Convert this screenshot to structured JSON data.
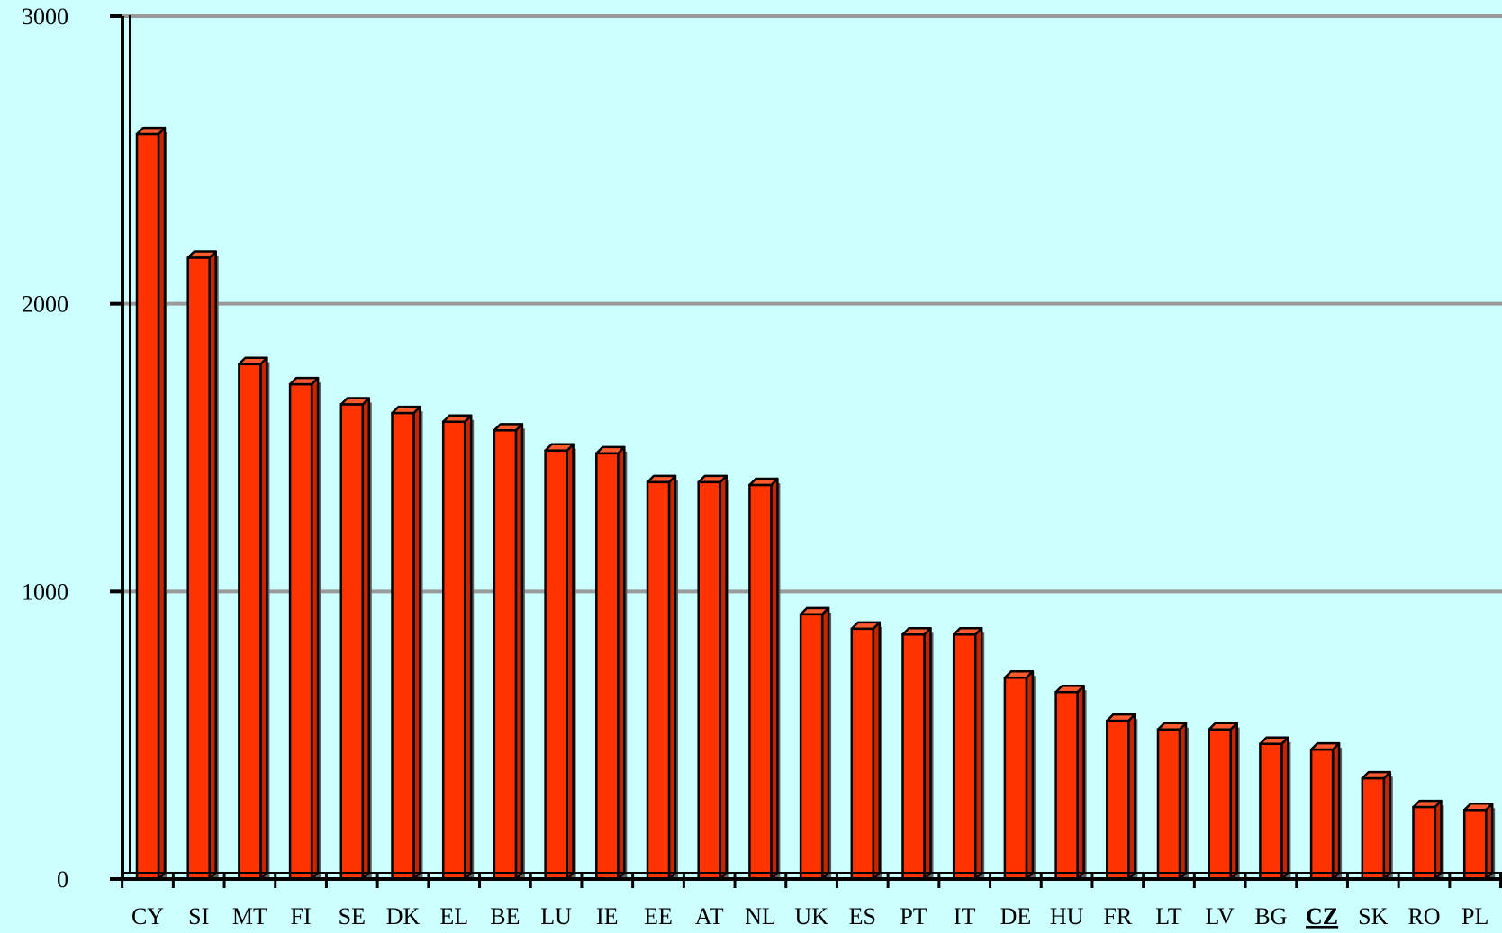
{
  "chart_data": {
    "type": "bar",
    "title": "",
    "xlabel": "",
    "ylabel": "",
    "ylim": [
      0,
      3000
    ],
    "yticks": [
      0,
      1000,
      2000,
      3000
    ],
    "ytick_labels": [
      "0",
      "1000",
      "2000",
      "3000"
    ],
    "grid": true,
    "legend": "none",
    "highlight_category": "CZ",
    "categories": [
      "CY",
      "SI",
      "MT",
      "FI",
      "SE",
      "DK",
      "EL",
      "BE",
      "LU",
      "IE",
      "EE",
      "AT",
      "NL",
      "UK",
      "ES",
      "PT",
      "IT",
      "DE",
      "HU",
      "FR",
      "LT",
      "LV",
      "BG",
      "CZ",
      "SK",
      "RO",
      "PL"
    ],
    "values": [
      2590,
      2160,
      1790,
      1720,
      1650,
      1620,
      1590,
      1560,
      1490,
      1480,
      1380,
      1380,
      1370,
      920,
      870,
      850,
      850,
      700,
      650,
      550,
      520,
      520,
      470,
      450,
      350,
      250,
      240
    ],
    "colors": {
      "background": "#CCFFFF",
      "bar": "#FF3300",
      "bar_top": "#FF5A2E",
      "bar_side": "#C42600",
      "shadow": "#5F5F5F",
      "grid": "#9A9A9A",
      "axis": "#000000"
    }
  }
}
